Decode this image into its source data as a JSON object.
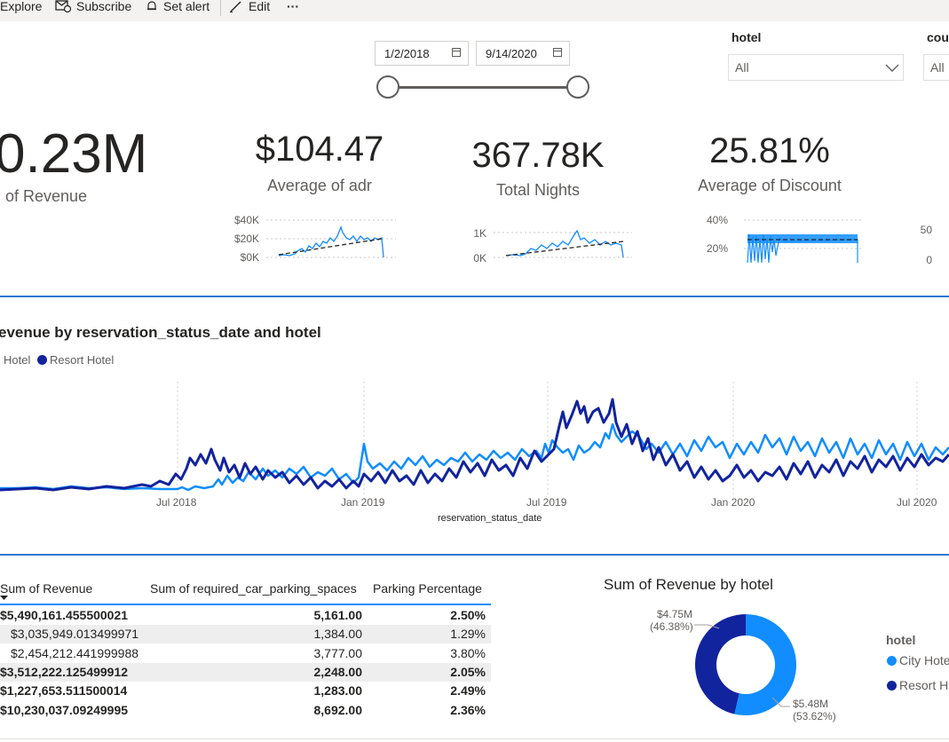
{
  "toolbar": {
    "explore": "Explore",
    "subscribe": "Subscribe",
    "set_alert": "Set alert",
    "edit": "Edit",
    "more": "···"
  },
  "date_slicer": {
    "start": "1/2/2018",
    "end": "9/14/2020"
  },
  "hotel_slicer": {
    "title": "hotel",
    "value": "All"
  },
  "country_slicer": {
    "title": "cou",
    "value": "All"
  },
  "kpis": [
    {
      "value": "0.23M",
      "label": "of Revenue"
    },
    {
      "value": "$104.47",
      "label": "Average of adr",
      "ticks": [
        "$40K",
        "$20K",
        "$0K"
      ]
    },
    {
      "value": "367.78K",
      "label": "Total Nights",
      "ticks": [
        "1K",
        "0K"
      ]
    },
    {
      "value": "25.81%",
      "label": "Average of Discount",
      "ticks": [
        "40%",
        "20%"
      ]
    },
    {
      "ticks": [
        "50",
        "0"
      ]
    }
  ],
  "line_chart": {
    "title": "evenue by reservation_status_date and hotel",
    "legend": [
      {
        "name": "Hotel",
        "color": "#118dff"
      },
      {
        "name": "Resort Hotel",
        "color": "#12239e"
      }
    ],
    "x_ticks": [
      "Jul 2018",
      "Jan 2019",
      "Jul 2019",
      "Jan 2020",
      "Jul 2020"
    ],
    "x_label": "reservation_status_date"
  },
  "table": {
    "headers": [
      "Sum of Revenue",
      "Sum of required_car_parking_spaces",
      "Parking Percentage"
    ],
    "rows": [
      {
        "c0": "$5,490,161.455500021",
        "c1": "5,161.00",
        "c2": "2.50%",
        "bold": true,
        "alt": false,
        "indent": false
      },
      {
        "c0": "$3,035,949.013499971",
        "c1": "1,384.00",
        "c2": "1.29%",
        "bold": false,
        "alt": true,
        "indent": true
      },
      {
        "c0": "$2,454,212.441999988",
        "c1": "3,777.00",
        "c2": "3.80%",
        "bold": false,
        "alt": false,
        "indent": true
      },
      {
        "c0": "$3,512,222.125499912",
        "c1": "2,248.00",
        "c2": "2.05%",
        "bold": true,
        "alt": true,
        "indent": false
      },
      {
        "c0": "$1,227,653.511500014",
        "c1": "1,283.00",
        "c2": "2.49%",
        "bold": true,
        "alt": false,
        "indent": false
      },
      {
        "c0": "$10,230,037.09249995",
        "c1": "8,692.00",
        "c2": "2.36%",
        "bold": true,
        "alt": false,
        "indent": false
      }
    ]
  },
  "donut": {
    "title": "Sum of Revenue by hotel",
    "legend_title": "hotel",
    "legend": [
      "City Hote",
      "Resort H"
    ],
    "labels": [
      {
        "value": "$4.75M",
        "pct": "(46.38%)"
      },
      {
        "value": "$5.48M",
        "pct": "(53.62%)"
      }
    ]
  },
  "chart_data": [
    {
      "type": "pie",
      "title": "Sum of Revenue by hotel",
      "categories": [
        "City Hotel",
        "Resort Hotel"
      ],
      "values": [
        5.48,
        4.75
      ],
      "percent": [
        53.62,
        46.38
      ],
      "colors": [
        "#118dff",
        "#12239e"
      ]
    }
  ]
}
